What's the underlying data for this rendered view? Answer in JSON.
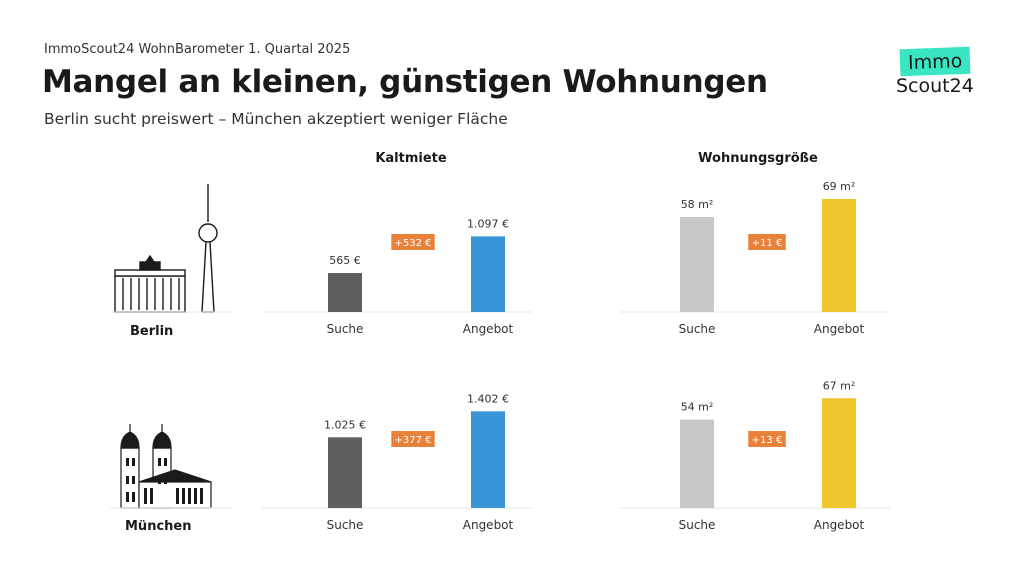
{
  "header": {
    "kicker": "ImmoScout24 WohnBarometer 1. Quartal 2025",
    "title": "Mangel an kleinen, günstigen Wohnungen",
    "subtitle": "Berlin sucht preiswert – München akzeptiert weniger Fläche"
  },
  "logo": {
    "top": "Immo",
    "bottom": "Scout24",
    "accent": "#3ae6c2"
  },
  "columns": {
    "rent": "Kaltmiete",
    "size": "Wohnungsgröße"
  },
  "cities": {
    "berlin": "Berlin",
    "muenchen": "München"
  },
  "colors": {
    "rent_suche": "#5f5f5f",
    "rent_angebot": "#3a95d8",
    "size_suche": "#c8c8c8",
    "size_angebot": "#f0c42b",
    "diff_badge": "#e8823a"
  },
  "chart_data": [
    {
      "type": "bar",
      "panel": "Berlin – Kaltmiete",
      "categories": [
        "Suche",
        "Angebot"
      ],
      "values": [
        565,
        1097
      ],
      "labels": [
        "565 €",
        "1.097 €"
      ],
      "difference_label": "+532 €",
      "ylim": [
        0,
        1450
      ]
    },
    {
      "type": "bar",
      "panel": "Berlin – Wohnungsgröße",
      "categories": [
        "Suche",
        "Angebot"
      ],
      "values": [
        58,
        69
      ],
      "labels": [
        "58 m²",
        "69 m²"
      ],
      "difference_label": "+11 €",
      "ylim": [
        0,
        69
      ]
    },
    {
      "type": "bar",
      "panel": "München – Kaltmiete",
      "categories": [
        "Suche",
        "Angebot"
      ],
      "values": [
        1025,
        1402
      ],
      "labels": [
        "1.025 €",
        "1.402 €"
      ],
      "difference_label": "+377 €",
      "ylim": [
        0,
        1450
      ]
    },
    {
      "type": "bar",
      "panel": "München – Wohnungsgröße",
      "categories": [
        "Suche",
        "Angebot"
      ],
      "values": [
        54,
        67
      ],
      "labels": [
        "54 m²",
        "67 m²"
      ],
      "difference_label": "+13 €",
      "ylim": [
        0,
        69
      ]
    }
  ]
}
